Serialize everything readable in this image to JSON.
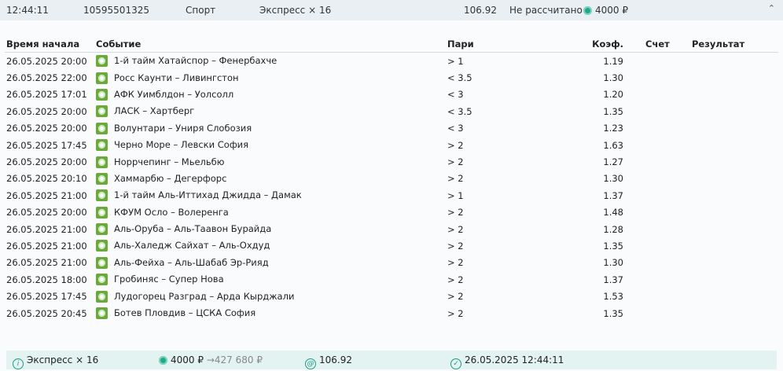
{
  "header": {
    "time": "12:44:11",
    "bet_id": "10595501325",
    "category": "Спорт",
    "type": "Экспресс × 16",
    "odds": "106.92",
    "status": "Не рассчитано",
    "stake": "4000 ₽"
  },
  "columns": {
    "start_time": "Время начала",
    "event": "Событие",
    "bet": "Пари",
    "coef": "Коэф.",
    "score": "Счет",
    "result": "Результат"
  },
  "rows": [
    {
      "time": "26.05.2025 20:00",
      "event": "1-й тайм Хатайспор – Фенербахче",
      "bet": "> 1",
      "coef": "1.19"
    },
    {
      "time": "26.05.2025 22:00",
      "event": "Росс Каунти – Ливингстон",
      "bet": "< 3.5",
      "coef": "1.30"
    },
    {
      "time": "26.05.2025 17:01",
      "event": "АФК Уимблдон – Уолсолл",
      "bet": "< 3",
      "coef": "1.20"
    },
    {
      "time": "26.05.2025 20:00",
      "event": "ЛАСК – Хартберг",
      "bet": "< 3.5",
      "coef": "1.35"
    },
    {
      "time": "26.05.2025 20:00",
      "event": "Волунтари – Униря Слобозия",
      "bet": "< 3",
      "coef": "1.23"
    },
    {
      "time": "26.05.2025 17:45",
      "event": "Черно Море – Левски София",
      "bet": "> 2",
      "coef": "1.63"
    },
    {
      "time": "26.05.2025 20:00",
      "event": "Норрчепинг – Мьельбю",
      "bet": "> 2",
      "coef": "1.27"
    },
    {
      "time": "26.05.2025 20:10",
      "event": "Хаммарбю – Дегерфорс",
      "bet": "> 2",
      "coef": "1.30"
    },
    {
      "time": "26.05.2025 21:00",
      "event": "1-й тайм Аль-Иттихад Джидда – Дамак",
      "bet": "> 1",
      "coef": "1.37"
    },
    {
      "time": "26.05.2025 20:00",
      "event": "КФУМ Осло – Волеренга",
      "bet": "> 2",
      "coef": "1.48"
    },
    {
      "time": "26.05.2025 21:00",
      "event": "Аль-Оруба – Аль-Таавон Бурайда",
      "bet": "> 2",
      "coef": "1.28"
    },
    {
      "time": "26.05.2025 21:00",
      "event": "Аль-Халедж Сайхат – Аль-Охдуд",
      "bet": "> 2",
      "coef": "1.35"
    },
    {
      "time": "26.05.2025 21:00",
      "event": "Аль-Фейха – Аль-Шабаб Эр-Рияд",
      "bet": "> 2",
      "coef": "1.30"
    },
    {
      "time": "26.05.2025 18:00",
      "event": "Гробиняс – Супер Нова",
      "bet": "> 2",
      "coef": "1.37"
    },
    {
      "time": "26.05.2025 17:45",
      "event": "Лудогорец Разград – Арда Кырджали",
      "bet": "> 2",
      "coef": "1.53"
    },
    {
      "time": "26.05.2025 20:45",
      "event": "Ботев Пловдив – ЦСКА София",
      "bet": "> 2",
      "coef": "1.35"
    }
  ],
  "footer": {
    "type": "Экспресс × 16",
    "stake": "4000 ₽",
    "arrow": "→",
    "payout": "427 680 ₽",
    "odds": "106.92",
    "datetime": "26.05.2025 12:44:11"
  }
}
